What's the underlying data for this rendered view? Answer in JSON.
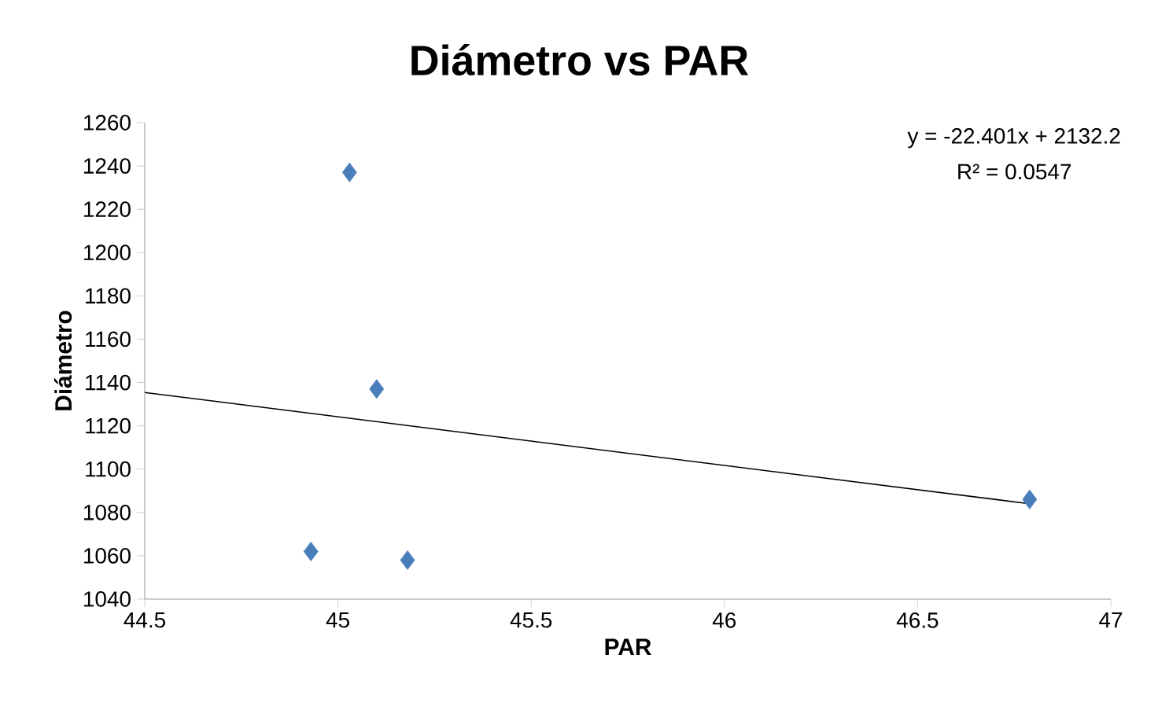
{
  "chart_data": {
    "type": "scatter",
    "title": "Diámetro vs PAR",
    "xlabel": "PAR",
    "ylabel": "Diámetro",
    "xlim": [
      44.5,
      47
    ],
    "xticks": [
      44.5,
      45,
      45.5,
      46,
      46.5,
      47
    ],
    "ylim": [
      1040,
      1260
    ],
    "yticks": [
      1040,
      1060,
      1080,
      1100,
      1120,
      1140,
      1160,
      1180,
      1200,
      1220,
      1240,
      1260
    ],
    "marker": "diamond",
    "annotations": [
      "y = -22.401x + 2132.2",
      "R² = 0.0547"
    ],
    "series": [
      {
        "color": "#4a7ebb",
        "x": [
          45.03,
          45.1,
          44.93,
          45.18,
          46.79
        ],
        "values": [
          1237,
          1137,
          1062,
          1058,
          1086
        ]
      },
      {
        "type": "line",
        "color": "#000000",
        "line_style": "solid",
        "marker": "none",
        "x": [
          44.5,
          46.79
        ],
        "values": [
          1135.4,
          1084.0
        ]
      }
    ]
  }
}
